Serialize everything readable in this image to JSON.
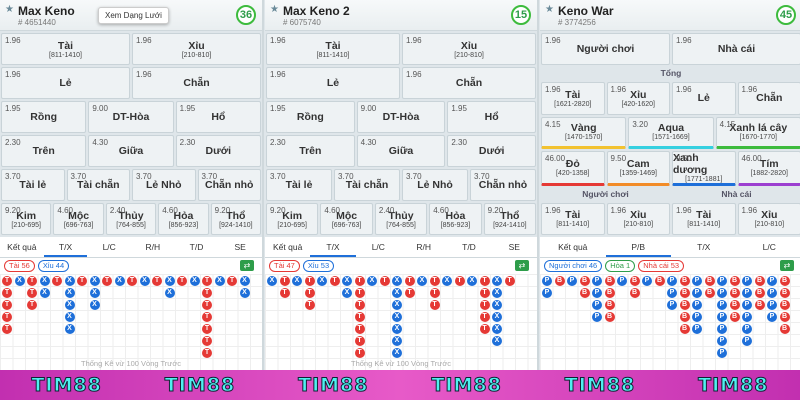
{
  "tooltip": "Xem Dạng Lưới",
  "watermark": [
    "TIM88",
    "TIM88",
    "TIM88",
    "TIM88",
    "TIM88",
    "TIM88"
  ],
  "bead_colors": {
    "T": "#e53935",
    "X": "#1e6fd9",
    "P": "#1e6fd9",
    "B": "#e53935"
  },
  "panels": [
    {
      "title": "Max Keno",
      "id": "# 4651440",
      "badge": "36",
      "active_tab": 1,
      "rows": [
        {
          "cells": [
            {
              "odds": "1.96",
              "label": "Tài",
              "range": "[811-1410]"
            },
            {
              "odds": "1.96",
              "label": "Xỉu",
              "range": "[210-810]"
            }
          ]
        },
        {
          "cells": [
            {
              "odds": "1.96",
              "label": "Lẻ"
            },
            {
              "odds": "1.96",
              "label": "Chẵn"
            }
          ]
        },
        {
          "cells": [
            {
              "odds": "1.95",
              "label": "Rồng"
            },
            {
              "odds": "9.00",
              "label": "DT-Hòa"
            },
            {
              "odds": "1.95",
              "label": "Hổ"
            }
          ]
        },
        {
          "cells": [
            {
              "odds": "2.30",
              "label": "Trên"
            },
            {
              "odds": "4.30",
              "label": "Giữa"
            },
            {
              "odds": "2.30",
              "label": "Dưới"
            }
          ]
        },
        {
          "cells": [
            {
              "odds": "3.70",
              "label": "Tài lẻ"
            },
            {
              "odds": "3.70",
              "label": "Tài chẵn"
            },
            {
              "odds": "3.70",
              "label": "Lẻ Nhỏ"
            },
            {
              "odds": "3.70",
              "label": "Chẵn nhỏ"
            }
          ]
        },
        {
          "cells": [
            {
              "odds": "9.20",
              "label": "Kim",
              "range": "[210-695]"
            },
            {
              "odds": "4.60",
              "label": "Mộc",
              "range": "[696-763]"
            },
            {
              "odds": "2.40",
              "label": "Thủy",
              "range": "[764-855]"
            },
            {
              "odds": "4.60",
              "label": "Hỏa",
              "range": "[856-923]"
            },
            {
              "odds": "9.20",
              "label": "Thổ",
              "range": "[924-1410]"
            }
          ]
        }
      ],
      "tabs": [
        "Kết quả",
        "T/X",
        "L/C",
        "R/H",
        "T/D",
        "SE"
      ],
      "chips": [
        {
          "text": "Tài 56",
          "color": "#e53935"
        },
        {
          "text": "Xỉu 44",
          "color": "#1e6fd9"
        }
      ],
      "road": [
        [
          "T",
          "T",
          "T",
          "T",
          "T"
        ],
        [
          "X"
        ],
        [
          "T",
          "T",
          "T"
        ],
        [
          "X",
          "X"
        ],
        [
          "T"
        ],
        [
          "X",
          "X",
          "X",
          "X",
          "X"
        ],
        [
          "T"
        ],
        [
          "X",
          "X",
          "X"
        ],
        [
          "T"
        ],
        [
          "X"
        ],
        [
          "T"
        ],
        [
          "X"
        ],
        [
          "T"
        ],
        [
          "X",
          "X"
        ],
        [
          "T"
        ],
        [
          "X"
        ],
        [
          "T",
          "T",
          "T",
          "T",
          "T",
          "T",
          "T"
        ],
        [
          "X"
        ],
        [
          "T"
        ],
        [
          "X",
          "X"
        ]
      ],
      "footer": "Thống Kê vừ 100 Vòng Trước"
    },
    {
      "title": "Max Keno 2",
      "id": "# 6075740",
      "badge": "15",
      "active_tab": 1,
      "rows": [
        {
          "cells": [
            {
              "odds": "1.96",
              "label": "Tài",
              "range": "[811-1410]"
            },
            {
              "odds": "1.96",
              "label": "Xỉu",
              "range": "[210-810]"
            }
          ]
        },
        {
          "cells": [
            {
              "odds": "1.96",
              "label": "Lẻ"
            },
            {
              "odds": "1.96",
              "label": "Chẵn"
            }
          ]
        },
        {
          "cells": [
            {
              "odds": "1.95",
              "label": "Rồng"
            },
            {
              "odds": "9.00",
              "label": "DT-Hòa"
            },
            {
              "odds": "1.95",
              "label": "Hổ"
            }
          ]
        },
        {
          "cells": [
            {
              "odds": "2.30",
              "label": "Trên"
            },
            {
              "odds": "4.30",
              "label": "Giữa"
            },
            {
              "odds": "2.30",
              "label": "Dưới"
            }
          ]
        },
        {
          "cells": [
            {
              "odds": "3.70",
              "label": "Tài lẻ"
            },
            {
              "odds": "3.70",
              "label": "Tài chẵn"
            },
            {
              "odds": "3.70",
              "label": "Lẻ Nhỏ"
            },
            {
              "odds": "3.70",
              "label": "Chẵn nhỏ"
            }
          ]
        },
        {
          "cells": [
            {
              "odds": "9.20",
              "label": "Kim",
              "range": "[210-695]"
            },
            {
              "odds": "4.60",
              "label": "Mộc",
              "range": "[696-763]"
            },
            {
              "odds": "2.40",
              "label": "Thủy",
              "range": "[764-855]"
            },
            {
              "odds": "4.60",
              "label": "Hỏa",
              "range": "[856-923]"
            },
            {
              "odds": "9.20",
              "label": "Thổ",
              "range": "[924-1410]"
            }
          ]
        }
      ],
      "tabs": [
        "Kết quả",
        "T/X",
        "L/C",
        "R/H",
        "T/D",
        "SE"
      ],
      "chips": [
        {
          "text": "Tài 47",
          "color": "#e53935"
        },
        {
          "text": "Xỉu 53",
          "color": "#1e6fd9"
        }
      ],
      "road": [
        [
          "X"
        ],
        [
          "T",
          "T"
        ],
        [
          "X"
        ],
        [
          "T",
          "T",
          "T"
        ],
        [
          "X"
        ],
        [
          "T"
        ],
        [
          "X",
          "X"
        ],
        [
          "T",
          "T",
          "T",
          "T",
          "T",
          "T",
          "T"
        ],
        [
          "X"
        ],
        [
          "T"
        ],
        [
          "X",
          "X",
          "X",
          "X",
          "X",
          "X",
          "X"
        ],
        [
          "T",
          "T"
        ],
        [
          "X"
        ],
        [
          "T",
          "T",
          "T"
        ],
        [
          "X"
        ],
        [
          "T"
        ],
        [
          "X"
        ],
        [
          "T",
          "T",
          "T",
          "T",
          "T"
        ],
        [
          "X",
          "X",
          "X",
          "X",
          "X",
          "X"
        ],
        [
          "T"
        ]
      ],
      "footer": "Thống Kê vừ 100 Vòng Trước"
    },
    {
      "title": "Keno War",
      "id": "# 3774256",
      "badge": "45",
      "active_tab": 1,
      "rows": [
        {
          "cells": [
            {
              "odds": "1.96",
              "label": "Người chơi"
            },
            {
              "odds": "1.96",
              "label": "Nhà cái"
            }
          ]
        },
        {
          "headers": [
            "Tổng"
          ]
        },
        {
          "cells": [
            {
              "odds": "1.96",
              "label": "Tài",
              "range": "[1621-2820]"
            },
            {
              "odds": "1.96",
              "label": "Xỉu",
              "range": "[420-1620]"
            },
            {
              "odds": "1.96",
              "label": "Lẻ"
            },
            {
              "odds": "1.96",
              "label": "Chẵn"
            }
          ]
        },
        {
          "cells": [
            {
              "odds": "4.15",
              "label": "Vàng",
              "range": "[1470-1570]",
              "color": "#f2c230"
            },
            {
              "odds": "3.20",
              "label": "Aqua",
              "range": "[1571-1669]",
              "color": "#35d0e0"
            },
            {
              "odds": "4.15",
              "label": "Xanh lá cây",
              "range": "[1670-1770]",
              "color": "#3dbb3d"
            }
          ]
        },
        {
          "cells": [
            {
              "odds": "46.00",
              "label": "Đỏ",
              "range": "[420-1358]",
              "color": "#e53935"
            },
            {
              "odds": "9.50",
              "label": "Cam",
              "range": "[1359-1469]",
              "color": "#f28c28"
            },
            {
              "odds": "9.50",
              "label": "Xanh dương",
              "range": "[1771-1881]",
              "color": "#1e6fd9"
            },
            {
              "odds": "46.00",
              "label": "Tím",
              "range": "[1882-2820]",
              "color": "#9c3fd0"
            }
          ]
        },
        {
          "headers": [
            "Người chơi",
            "Nhà cái"
          ]
        },
        {
          "cells": [
            {
              "odds": "1.96",
              "label": "Tài",
              "range": "[811-1410]"
            },
            {
              "odds": "1.96",
              "label": "Xỉu",
              "range": "[210-810]"
            },
            {
              "odds": "1.96",
              "label": "Tài",
              "range": "[811-1410]"
            },
            {
              "odds": "1.96",
              "label": "Xỉu",
              "range": "[210-810]"
            }
          ]
        }
      ],
      "tabs": [
        "Kết quả",
        "P/B",
        "T/X",
        "L/C"
      ],
      "chips": [
        {
          "text": "Người chơi 46",
          "color": "#1e6fd9"
        },
        {
          "text": "Hòa 1",
          "color": "#2e9d4a"
        },
        {
          "text": "Nhà cái 53",
          "color": "#e53935"
        }
      ],
      "road": [
        [
          "P",
          "P"
        ],
        [
          "B"
        ],
        [
          "P"
        ],
        [
          "B",
          "B"
        ],
        [
          "P",
          "P",
          "P",
          "P"
        ],
        [
          "B",
          "B",
          "B",
          "B"
        ],
        [
          "P"
        ],
        [
          "B",
          "B"
        ],
        [
          "P"
        ],
        [
          "B"
        ],
        [
          "P",
          "P",
          "P"
        ],
        [
          "B",
          "B",
          "B",
          "B",
          "B"
        ],
        [
          "P",
          "P",
          "P",
          "P",
          "P"
        ],
        [
          "B",
          "B"
        ],
        [
          "P",
          "P",
          "P",
          "P",
          "P",
          "P",
          "P"
        ],
        [
          "B",
          "B",
          "B",
          "B"
        ],
        [
          "P",
          "P",
          "P",
          "P",
          "P",
          "P"
        ],
        [
          "B",
          "B",
          "B"
        ],
        [
          "P",
          "P",
          "P",
          "P"
        ],
        [
          "B",
          "B",
          "B",
          "B",
          "B"
        ]
      ]
    }
  ]
}
